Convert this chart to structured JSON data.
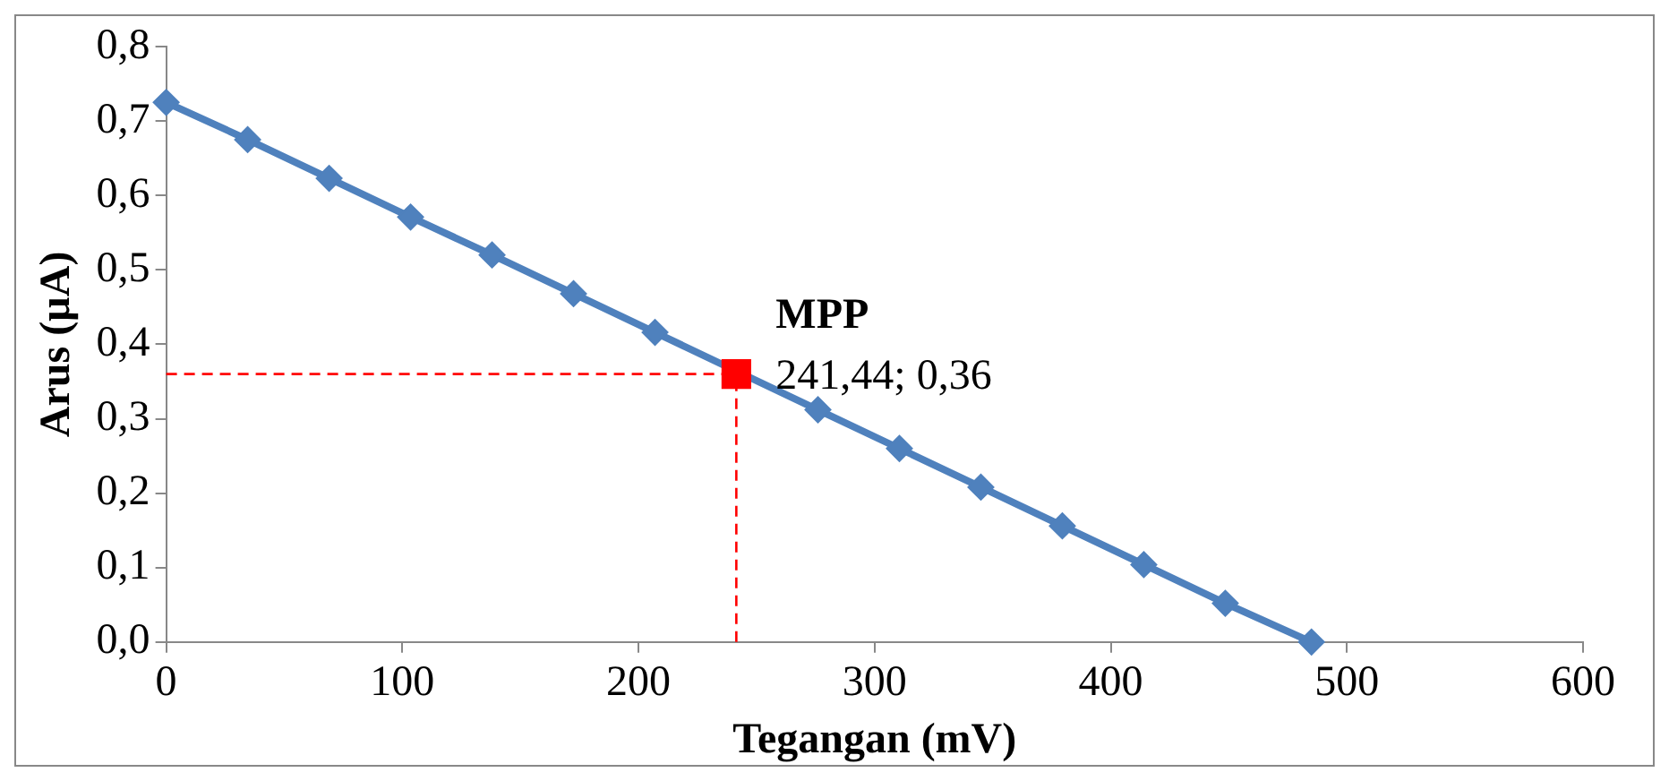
{
  "chart_data": {
    "type": "line",
    "xlabel": "Tegangan (mV)",
    "ylabel": "Arus (µA)",
    "xlim": [
      0,
      600
    ],
    "xticks": [
      0,
      100,
      200,
      300,
      400,
      500,
      600
    ],
    "ylim": [
      0,
      0.8
    ],
    "yticks": [
      {
        "value": 0,
        "label": "0,0"
      },
      {
        "value": 0.1,
        "label": "0,1"
      },
      {
        "value": 0.2,
        "label": "0,2"
      },
      {
        "value": 0.3,
        "label": "0,3"
      },
      {
        "value": 0.4,
        "label": "0,4"
      },
      {
        "value": 0.5,
        "label": "0,5"
      },
      {
        "value": 0.6,
        "label": "0,6"
      },
      {
        "value": 0.7,
        "label": "0,7"
      },
      {
        "value": 0.8,
        "label": "0,8"
      }
    ],
    "grid": false,
    "legend": false,
    "series": [
      {
        "type": "scatter",
        "color": "#ff0000",
        "marker": "square",
        "x": [
          241.44
        ],
        "values": [
          0.36
        ]
      },
      {
        "type": "line",
        "color": "#4f81bd",
        "line_style": "solid",
        "marker": "diamond",
        "x": [
          0,
          34.5,
          69,
          103.5,
          138,
          172.5,
          207,
          276,
          310.5,
          345,
          379.5,
          414,
          448.5,
          485
        ],
        "values": [
          0.725,
          0.675,
          0.623,
          0.571,
          0.52,
          0.468,
          0.416,
          0.312,
          0.26,
          0.208,
          0.156,
          0.104,
          0.052,
          0.0
        ]
      },
      {
        "type": "line",
        "color": "#ff0000",
        "line_style": "dashed",
        "marker": "none",
        "x": [
          0,
          241.44
        ],
        "values": [
          0.36,
          0.36
        ]
      },
      {
        "type": "line",
        "color": "#ff0000",
        "line_style": "dashed",
        "marker": "none",
        "x": [
          241.44,
          241.44
        ],
        "values": [
          0,
          0.36
        ]
      }
    ],
    "annotations": [
      {
        "text": "MPP",
        "x": 241.44,
        "y": 0.36
      },
      {
        "text": "241,44; 0,36",
        "x": 241.44,
        "y": 0.36
      }
    ]
  }
}
